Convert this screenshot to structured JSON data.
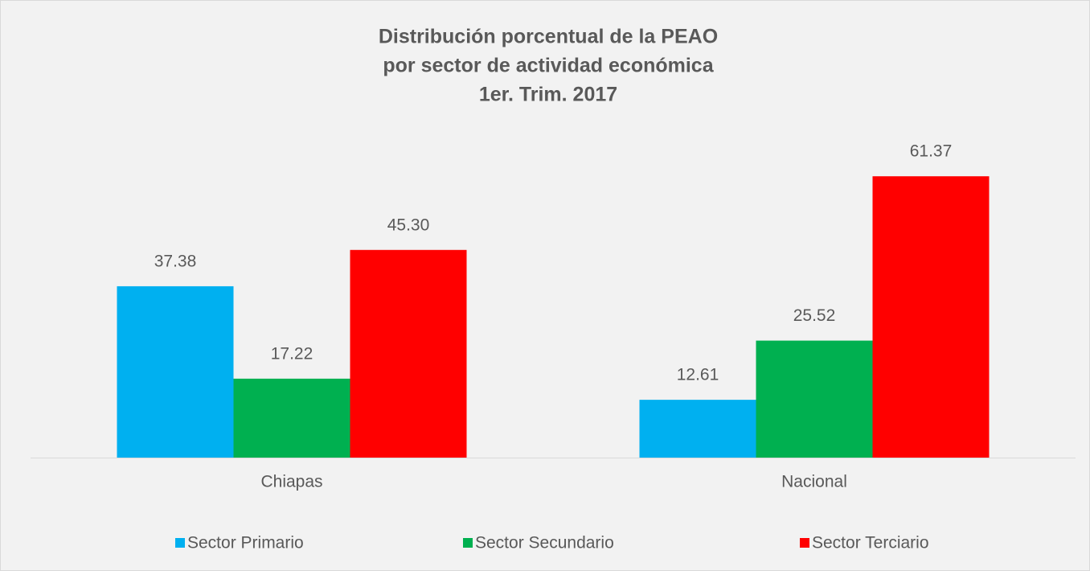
{
  "chart_data": {
    "type": "bar",
    "title": [
      "Distribución porcentual de la PEAO",
      "por sector de actividad económica",
      "1er. Trim. 2017"
    ],
    "categories": [
      "Chiapas",
      "Nacional"
    ],
    "series": [
      {
        "name": "Sector Primario",
        "color": "#00b0f0",
        "values": [
          37.38,
          12.61
        ],
        "value_labels": [
          "37.38",
          "12.61"
        ]
      },
      {
        "name": "Sector Secundario",
        "color": "#00b050",
        "values": [
          17.22,
          25.52
        ],
        "value_labels": [
          "17.22",
          "25.52"
        ]
      },
      {
        "name": "Sector Terciario",
        "color": "#ff0000",
        "values": [
          45.3,
          61.37
        ],
        "value_labels": [
          "45.30",
          "61.37"
        ]
      }
    ],
    "legend": "bottom"
  }
}
